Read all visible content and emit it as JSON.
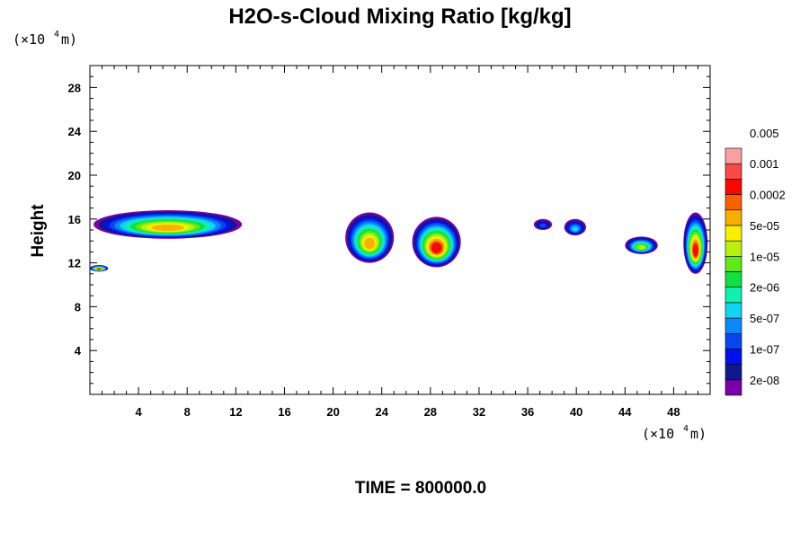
{
  "chart_data": {
    "type": "heatmap",
    "title": "H2O-s-Cloud Mixing Ratio [kg/kg]",
    "ylabel": "Height",
    "y_unit": {
      "prefix": "(×10",
      "exponent": "4",
      "suffix": " m)"
    },
    "x_unit": {
      "prefix": "(×10",
      "exponent": "4",
      "suffix": " m)"
    },
    "footer": "TIME = 800000.0",
    "xlim": [
      0,
      51
    ],
    "ylim": [
      0,
      30
    ],
    "x_ticks": [
      4,
      8,
      12,
      16,
      20,
      24,
      28,
      32,
      36,
      40,
      44,
      48
    ],
    "y_ticks": [
      4,
      8,
      12,
      16,
      20,
      24,
      28
    ],
    "legend": {
      "colors": [
        "#7a00a8",
        "#101890",
        "#0010e8",
        "#0a46f0",
        "#0a88f8",
        "#10d4f0",
        "#10f0b0",
        "#10e040",
        "#60e818",
        "#b8f010",
        "#f8f000",
        "#f8b000",
        "#f86000",
        "#f80800",
        "#f84848",
        "#f8a0a0"
      ],
      "labels": [
        "2e-08",
        "1e-07",
        "5e-07",
        "2e-06",
        "1e-05",
        "5e-05",
        "0.0002",
        "0.001",
        "0.005"
      ]
    },
    "cloud_regions": [
      {
        "x_range": [
          0.3,
          12.5
        ],
        "y_range": [
          14.2,
          16.8
        ],
        "peak": "5e-05"
      },
      {
        "x_range": [
          0,
          1.5
        ],
        "y_range": [
          11.2,
          11.8
        ],
        "peak": "0.0002"
      },
      {
        "x_range": [
          21,
          25
        ],
        "y_range": [
          12,
          16.6
        ],
        "peak": "5e-05"
      },
      {
        "x_range": [
          26.5,
          30.5
        ],
        "y_range": [
          11.6,
          16.2
        ],
        "peak": "0.0002"
      },
      {
        "x_range": [
          36.5,
          38
        ],
        "y_range": [
          15,
          16
        ],
        "peak": "1e-07"
      },
      {
        "x_range": [
          39,
          40.8
        ],
        "y_range": [
          14.5,
          16
        ],
        "peak": "5e-07"
      },
      {
        "x_range": [
          44,
          46.7
        ],
        "y_range": [
          12.8,
          14.4
        ],
        "peak": "1e-05"
      },
      {
        "x_range": [
          48.8,
          50.8
        ],
        "y_range": [
          11.0,
          16.6
        ],
        "peak": "0.0002"
      }
    ]
  }
}
